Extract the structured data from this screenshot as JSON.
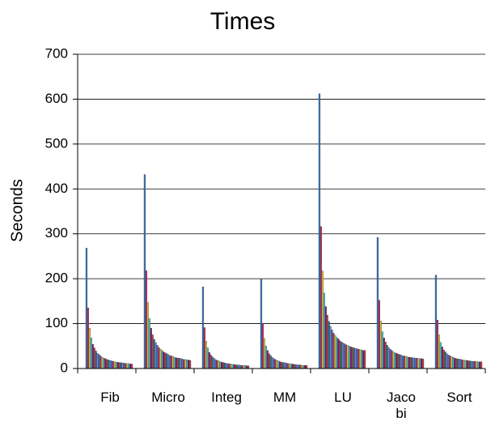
{
  "chart_data": {
    "type": "bar",
    "title": "Times",
    "y_label": "Seconds",
    "categories": [
      "Fib",
      "Micro",
      "Integ",
      "MM",
      "LU",
      "Jacobi",
      "Sort"
    ],
    "ylim": [
      0,
      700
    ],
    "yticks": [
      0,
      100,
      200,
      300,
      400,
      500,
      600,
      700
    ],
    "grid": true,
    "series": [
      {
        "color": "#3c78c8",
        "values": [
          268,
          432,
          182,
          200,
          612,
          292,
          208
        ]
      },
      {
        "color": "#c03060",
        "values": [
          135,
          218,
          91,
          100,
          316,
          152,
          108
        ]
      },
      {
        "color": "#d8c040",
        "values": [
          90,
          147,
          61,
          67,
          217,
          105,
          75
        ]
      },
      {
        "color": "#40c0c0",
        "values": [
          68,
          111,
          46,
          50,
          168,
          82,
          58
        ]
      },
      {
        "color": "#802080",
        "values": [
          54,
          90,
          36,
          40,
          138,
          68,
          48
        ]
      },
      {
        "color": "#c04040",
        "values": [
          46,
          75,
          30,
          33,
          119,
          59,
          41
        ]
      },
      {
        "color": "#208080",
        "values": [
          39,
          65,
          26,
          29,
          105,
          52,
          37
        ]
      },
      {
        "color": "#8080e0",
        "values": [
          34,
          58,
          23,
          25,
          94,
          47,
          33
        ]
      },
      {
        "color": "#3c78c8",
        "values": [
          31,
          52,
          20,
          22,
          86,
          43,
          30
        ]
      },
      {
        "color": "#c03060",
        "values": [
          28,
          47,
          18,
          20,
          79,
          40,
          28
        ]
      },
      {
        "color": "#d8c040",
        "values": [
          25,
          43,
          17,
          18,
          74,
          37,
          26
        ]
      },
      {
        "color": "#40c0c0",
        "values": [
          23,
          40,
          15,
          17,
          69,
          35,
          25
        ]
      },
      {
        "color": "#802080",
        "values": [
          22,
          37,
          14,
          15,
          66,
          34,
          23
        ]
      },
      {
        "color": "#c04040",
        "values": [
          20,
          35,
          13,
          14,
          62,
          32,
          22
        ]
      },
      {
        "color": "#208080",
        "values": [
          19,
          33,
          12,
          13,
          59,
          31,
          21
        ]
      },
      {
        "color": "#8080e0",
        "values": [
          18,
          31,
          11,
          13,
          57,
          30,
          21
        ]
      },
      {
        "color": "#3c78c8",
        "values": [
          17,
          29,
          11,
          12,
          55,
          28,
          20
        ]
      },
      {
        "color": "#c03060",
        "values": [
          16,
          28,
          10,
          11,
          53,
          28,
          19
        ]
      },
      {
        "color": "#d8c040",
        "values": [
          15,
          27,
          10,
          11,
          51,
          27,
          19
        ]
      },
      {
        "color": "#40c0c0",
        "values": [
          14,
          25,
          9,
          10,
          50,
          26,
          18
        ]
      },
      {
        "color": "#802080",
        "values": [
          14,
          24,
          9,
          10,
          48,
          25,
          18
        ]
      },
      {
        "color": "#c04040",
        "values": [
          13,
          23,
          8,
          9,
          47,
          25,
          17
        ]
      },
      {
        "color": "#208080",
        "values": [
          13,
          23,
          8,
          9,
          46,
          24,
          17
        ]
      },
      {
        "color": "#8080e0",
        "values": [
          12,
          22,
          8,
          8,
          45,
          24,
          16
        ]
      },
      {
        "color": "#3c78c8",
        "values": [
          12,
          21,
          7,
          8,
          44,
          23,
          16
        ]
      },
      {
        "color": "#c03060",
        "values": [
          11,
          20,
          7,
          8,
          43,
          23,
          16
        ]
      },
      {
        "color": "#d8c040",
        "values": [
          11,
          20,
          7,
          7,
          42,
          22,
          15
        ]
      },
      {
        "color": "#40c0c0",
        "values": [
          11,
          19,
          7,
          7,
          41,
          22,
          15
        ]
      },
      {
        "color": "#802080",
        "values": [
          10,
          19,
          6,
          7,
          40,
          22,
          15
        ]
      },
      {
        "color": "#c04040",
        "values": [
          10,
          18,
          6,
          7,
          40,
          21,
          15
        ]
      }
    ]
  }
}
